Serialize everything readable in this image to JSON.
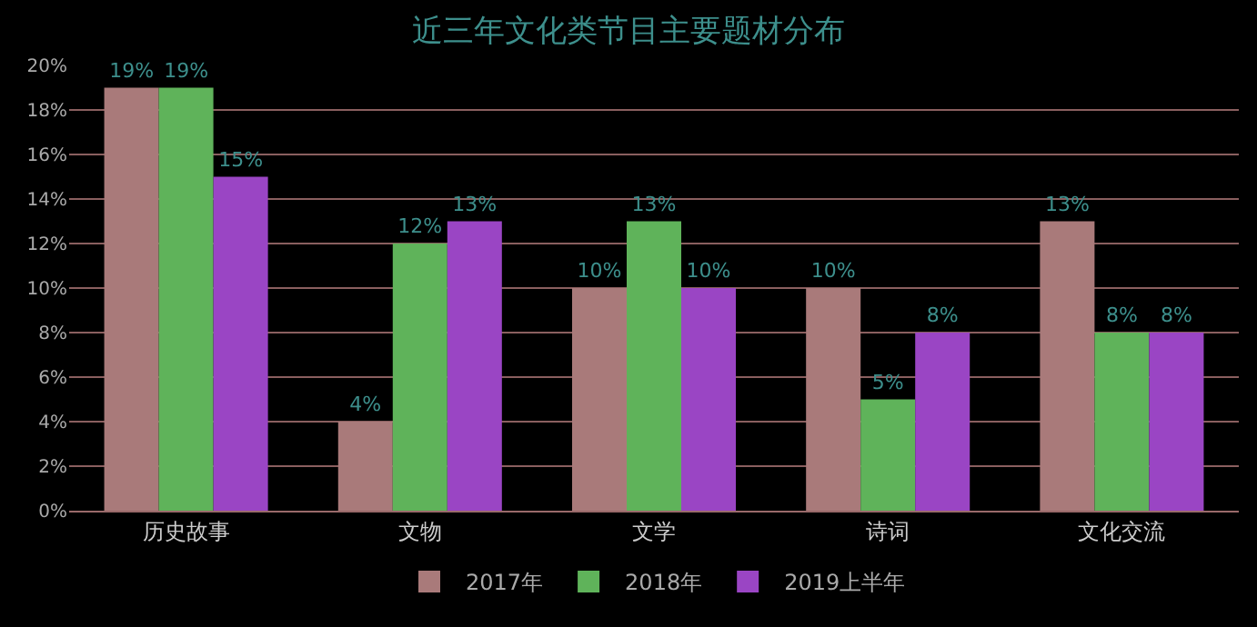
{
  "chart_data": {
    "type": "bar",
    "title": "近三年文化类节目主要题材分布",
    "categories": [
      "历史故事",
      "文物",
      "文学",
      "诗词",
      "文化交流"
    ],
    "series": [
      {
        "name": "2017年",
        "color": "#a97a7a",
        "values": [
          19,
          4,
          10,
          10,
          13
        ],
        "value_labels": [
          "19%",
          "4%",
          "10%",
          "10%",
          "13%"
        ]
      },
      {
        "name": "2018年",
        "color": "#5fb35a",
        "values": [
          19,
          12,
          13,
          5,
          8
        ],
        "value_labels": [
          "19%",
          "12%",
          "13%",
          "5%",
          "8%"
        ]
      },
      {
        "name": "2019上半年",
        "color": "#9a45c4",
        "values": [
          15,
          13,
          10,
          8,
          8
        ],
        "value_labels": [
          "15%",
          "13%",
          "10%",
          "8%",
          "8%"
        ]
      }
    ],
    "ylim": [
      0,
      20
    ],
    "yticks": [
      {
        "value": 0,
        "label": "0%"
      },
      {
        "value": 2,
        "label": "2%"
      },
      {
        "value": 4,
        "label": "4%"
      },
      {
        "value": 6,
        "label": "6%"
      },
      {
        "value": 8,
        "label": "8%"
      },
      {
        "value": 10,
        "label": "10%"
      },
      {
        "value": 12,
        "label": "12%"
      },
      {
        "value": 14,
        "label": "14%"
      },
      {
        "value": 16,
        "label": "16%"
      },
      {
        "value": 18,
        "label": "18%"
      },
      {
        "value": 20,
        "label": "20%"
      }
    ],
    "grid": "y",
    "legend": "bottom"
  }
}
